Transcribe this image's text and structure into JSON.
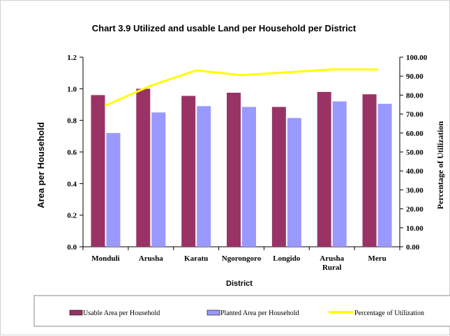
{
  "chart_data": {
    "type": "bar",
    "title": "Chart 3.9 Utilized and usable Land per Household per District",
    "xlabel": "District",
    "ylabel": "Area per Household",
    "y2label": "Percentage of Utilization",
    "categories": [
      "Monduli",
      "Arusha",
      "Karatu",
      "Ngorongoro",
      "Longido",
      "Arusha Rural",
      "Meru"
    ],
    "category_lines": [
      [
        "Monduli"
      ],
      [
        "Arusha"
      ],
      [
        "Karatu"
      ],
      [
        "Ngorongoro"
      ],
      [
        "Longido"
      ],
      [
        "Arusha",
        "Rural"
      ],
      [
        "Meru"
      ]
    ],
    "ylim": [
      0,
      1.2
    ],
    "y2lim": [
      0,
      100
    ],
    "yticks": [
      "0.0",
      "0.2",
      "0.4",
      "0.6",
      "0.8",
      "1.0",
      "1.2"
    ],
    "y2ticks": [
      "0.00",
      "10.00",
      "20.00",
      "30.00",
      "40.00",
      "50.00",
      "60.00",
      "70.00",
      "80.00",
      "90.00",
      "100.00"
    ],
    "series": [
      {
        "name": "Usable Area per Household",
        "kind": "bar",
        "axis": "left",
        "color": "#993366",
        "values": [
          0.96,
          1.0,
          0.955,
          0.975,
          0.885,
          0.98,
          0.965
        ]
      },
      {
        "name": "Planted Area per Household",
        "kind": "bar",
        "axis": "left",
        "color": "#9999ff",
        "values": [
          0.72,
          0.85,
          0.89,
          0.885,
          0.815,
          0.92,
          0.905
        ]
      },
      {
        "name": "Percentage of Utilization",
        "kind": "line",
        "axis": "right",
        "color": "#ffff00",
        "values": [
          74.5,
          85,
          93,
          90.5,
          92,
          93.5,
          93.5
        ]
      }
    ],
    "grid": false,
    "legend_position": "bottom"
  }
}
